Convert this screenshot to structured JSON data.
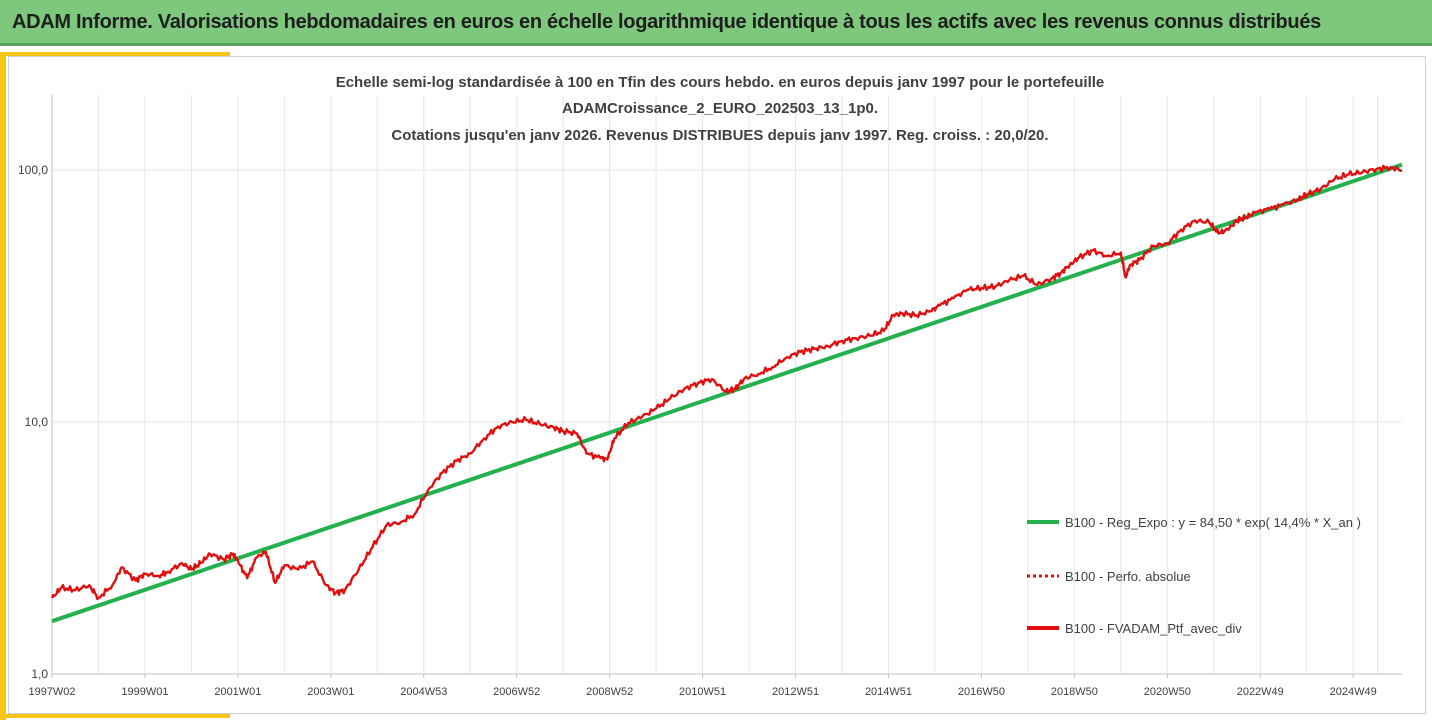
{
  "banner": {
    "title": "ADAM Informe. Valorisations hebdomadaires en euros en échelle logarithmique identique à tous les actifs avec les revenus connus distribués",
    "color": "#7ec87e",
    "accent_color": "#f5c518"
  },
  "chart_data": {
    "type": "line",
    "title_lines": [
      "Echelle semi-log standardisée à 100 en Tfin des cours hebdo.  en euros depuis janv 1997 pour le portefeuille",
      "ADAMCroissance_2_EURO_202503_13_1p0.",
      "Cotations  jusqu'en janv 2026. Revenus DISTRIBUES depuis janv 1997. Reg. croiss. : 20,0/20."
    ],
    "y_scale": "log",
    "ylim": [
      1,
      100
    ],
    "yticks": [
      1,
      10,
      100
    ],
    "ytick_labels": [
      "1,0",
      "10,0",
      "100,0"
    ],
    "xlim": [
      1997.0,
      2026.05
    ],
    "xticks": [
      1997.0,
      1999.0,
      2001.0,
      2003.0,
      2005.0,
      2007.0,
      2009.0,
      2011.0,
      2013.0,
      2015.0,
      2017.0,
      2019.0,
      2021.0,
      2023.0,
      2025.0
    ],
    "xtick_labels": [
      "1997W02",
      "1999W01",
      "2001W01",
      "2003W01",
      "2004W53",
      "2006W52",
      "2008W52",
      "2010W51",
      "2012W51",
      "2014W51",
      "2016W50",
      "2018W50",
      "2020W50",
      "2022W49",
      "2024W49"
    ],
    "grid": "vertical",
    "legend_position": "bottom-right",
    "series": [
      {
        "name": "B100 - Reg_Expo : y = 84,50 * exp( 14,4% *  X_an )",
        "color": "#22b14c",
        "style": "solid",
        "x": [
          1997.0,
          2026.05
        ],
        "y": [
          1.62,
          105.0
        ]
      },
      {
        "name": "B100 - Perfo. absolue",
        "color": "#e01010",
        "style": "dotted",
        "x": [],
        "y": []
      },
      {
        "name": "B100 - FVADAM_Ptf_avec_div",
        "color": "#e01010",
        "style": "solid",
        "x": [
          1997.0,
          1997.2,
          1997.5,
          1997.8,
          1998.0,
          1998.3,
          1998.5,
          1998.8,
          1999.0,
          1999.3,
          1999.5,
          1999.8,
          2000.0,
          2000.2,
          2000.4,
          2000.7,
          2000.9,
          2001.0,
          2001.2,
          2001.4,
          2001.6,
          2001.8,
          2002.0,
          2002.3,
          2002.6,
          2002.9,
          2003.1,
          2003.3,
          2003.6,
          2003.9,
          2004.2,
          2004.5,
          2004.8,
          2005.1,
          2005.4,
          2005.7,
          2006.0,
          2006.3,
          2006.6,
          2006.9,
          2007.2,
          2007.5,
          2007.8,
          2008.0,
          2008.3,
          2008.5,
          2008.8,
          2008.95,
          2009.1,
          2009.4,
          2009.7,
          2010.0,
          2010.3,
          2010.6,
          2010.9,
          2011.2,
          2011.5,
          2011.7,
          2011.9,
          2012.2,
          2012.5,
          2012.8,
          2013.1,
          2013.4,
          2013.7,
          2014.0,
          2014.3,
          2014.6,
          2014.9,
          2015.1,
          2015.3,
          2015.6,
          2015.9,
          2016.1,
          2016.4,
          2016.7,
          2017.0,
          2017.3,
          2017.6,
          2017.9,
          2018.2,
          2018.5,
          2018.7,
          2018.9,
          2019.1,
          2019.4,
          2019.7,
          2020.0,
          2020.1,
          2020.2,
          2020.4,
          2020.7,
          2021.0,
          2021.3,
          2021.6,
          2021.9,
          2022.1,
          2022.3,
          2022.5,
          2022.7,
          2022.9,
          2023.2,
          2023.5,
          2023.8,
          2024.0,
          2024.3,
          2024.6,
          2024.9,
          2025.2,
          2025.5,
          2025.8,
          2026.05
        ],
        "y": [
          2.0,
          2.2,
          2.15,
          2.25,
          2.0,
          2.25,
          2.65,
          2.35,
          2.5,
          2.45,
          2.55,
          2.75,
          2.6,
          2.75,
          3.0,
          2.85,
          3.0,
          2.8,
          2.4,
          2.9,
          3.05,
          2.3,
          2.7,
          2.6,
          2.8,
          2.25,
          2.1,
          2.15,
          2.6,
          3.2,
          3.9,
          4.0,
          4.3,
          5.4,
          6.3,
          7.0,
          7.5,
          8.6,
          9.6,
          10.0,
          10.2,
          9.8,
          9.5,
          9.2,
          9.0,
          7.5,
          7.2,
          7.1,
          8.6,
          9.9,
          10.5,
          11.3,
          12.4,
          13.5,
          14.3,
          14.8,
          13.2,
          13.5,
          14.9,
          15.5,
          16.5,
          18.0,
          19.0,
          19.5,
          20.0,
          21.0,
          21.5,
          22.0,
          23.0,
          26.5,
          27.0,
          26.5,
          27.5,
          29.0,
          31.0,
          33.5,
          34.0,
          34.5,
          36.5,
          38.0,
          35.0,
          37.0,
          39.0,
          42.0,
          45.0,
          48.0,
          45.5,
          47.0,
          37.5,
          42.0,
          44.0,
          50.0,
          51.0,
          58.0,
          63.0,
          62.0,
          56.0,
          58.0,
          63.0,
          65.0,
          68.0,
          70.0,
          73.0,
          76.0,
          80.0,
          84.0,
          92.0,
          96.0,
          98.0,
          101.0,
          102.5,
          100.0
        ]
      }
    ]
  }
}
